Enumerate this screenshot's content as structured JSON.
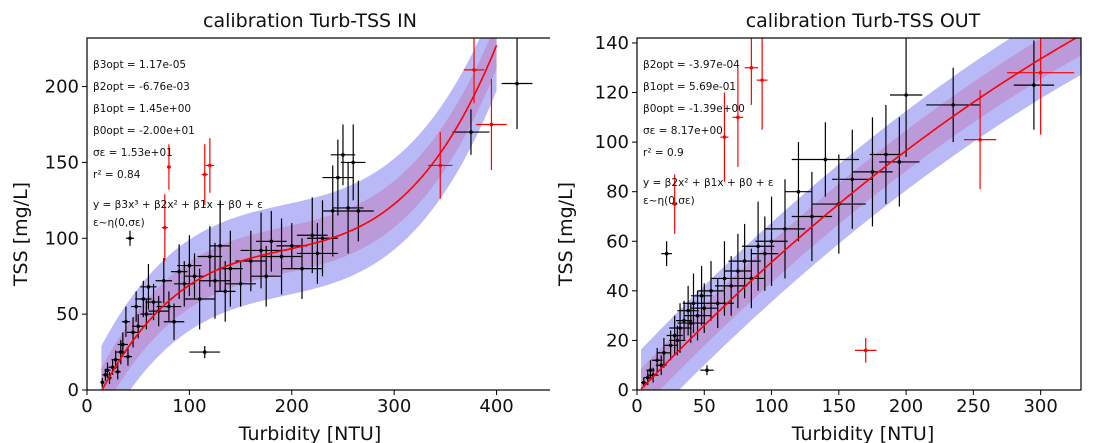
{
  "chart_data": [
    {
      "type": "scatter",
      "title": "calibration Turb-TSS IN",
      "xlabel": "Turbidity [NTU]",
      "ylabel": "TSS [mg/L]",
      "xlim": [
        0,
        460
      ],
      "ylim": [
        0,
        232
      ],
      "xticks": [
        0,
        100,
        200,
        300,
        400
      ],
      "yticks": [
        0,
        50,
        100,
        150,
        200
      ],
      "grid": false,
      "colors": {
        "points": "#000000",
        "outliers": "#ff0000",
        "fit": "#ff0000",
        "band_outer": "#8080f0",
        "band_inner": "#c080c0"
      },
      "annotations": [
        "β3opt = 1.17e-05",
        "β2opt = -6.76e-03",
        "β1opt = 1.45e+00",
        "β0opt = -2.00e+01",
        "σε = 1.53e+01",
        "r² = 0.84",
        "y = β3x³ + β2x² + β1x + β0 + ε",
        "ε~η(0,σε)"
      ],
      "fit": {
        "model": "cubic",
        "coefficients": [
          1.17e-05,
          -0.00676,
          1.45,
          -20.0
        ],
        "sigma": 15.3,
        "x_range": [
          14,
          400
        ]
      },
      "points": [
        {
          "x": 15,
          "y": 5,
          "xerr": 2,
          "yerr": 3
        },
        {
          "x": 18,
          "y": 10,
          "xerr": 3,
          "yerr": 4
        },
        {
          "x": 20,
          "y": 13,
          "xerr": 3,
          "yerr": 5
        },
        {
          "x": 22,
          "y": 8,
          "xerr": 2,
          "yerr": 4
        },
        {
          "x": 25,
          "y": 15,
          "xerr": 4,
          "yerr": 5
        },
        {
          "x": 28,
          "y": 20,
          "xerr": 4,
          "yerr": 6
        },
        {
          "x": 30,
          "y": 12,
          "xerr": 3,
          "yerr": 5
        },
        {
          "x": 33,
          "y": 25,
          "xerr": 5,
          "yerr": 8
        },
        {
          "x": 35,
          "y": 30,
          "xerr": 5,
          "yerr": 8
        },
        {
          "x": 38,
          "y": 45,
          "xerr": 4,
          "yerr": 10
        },
        {
          "x": 40,
          "y": 22,
          "xerr": 4,
          "yerr": 6
        },
        {
          "x": 42,
          "y": 100,
          "xerr": 4,
          "yerr": 5
        },
        {
          "x": 45,
          "y": 38,
          "xerr": 6,
          "yerr": 10
        },
        {
          "x": 48,
          "y": 55,
          "xerr": 5,
          "yerr": 10
        },
        {
          "x": 50,
          "y": 42,
          "xerr": 6,
          "yerr": 8
        },
        {
          "x": 55,
          "y": 60,
          "xerr": 8,
          "yerr": 12
        },
        {
          "x": 58,
          "y": 50,
          "xerr": 6,
          "yerr": 10
        },
        {
          "x": 60,
          "y": 68,
          "xerr": 8,
          "yerr": 15
        },
        {
          "x": 65,
          "y": 58,
          "xerr": 8,
          "yerr": 12
        },
        {
          "x": 70,
          "y": 52,
          "xerr": 10,
          "yerr": 10
        },
        {
          "x": 75,
          "y": 72,
          "xerr": 8,
          "yerr": 15
        },
        {
          "x": 80,
          "y": 55,
          "xerr": 12,
          "yerr": 10
        },
        {
          "x": 85,
          "y": 45,
          "xerr": 10,
          "yerr": 12
        },
        {
          "x": 90,
          "y": 78,
          "xerr": 8,
          "yerr": 18
        },
        {
          "x": 95,
          "y": 70,
          "xerr": 10,
          "yerr": 15
        },
        {
          "x": 100,
          "y": 82,
          "xerr": 12,
          "yerr": 20
        },
        {
          "x": 105,
          "y": 75,
          "xerr": 10,
          "yerr": 15
        },
        {
          "x": 110,
          "y": 60,
          "xerr": 15,
          "yerr": 20
        },
        {
          "x": 115,
          "y": 25,
          "xerr": 15,
          "yerr": 4
        },
        {
          "x": 120,
          "y": 88,
          "xerr": 12,
          "yerr": 20
        },
        {
          "x": 125,
          "y": 72,
          "xerr": 15,
          "yerr": 25
        },
        {
          "x": 130,
          "y": 95,
          "xerr": 10,
          "yerr": 30
        },
        {
          "x": 135,
          "y": 65,
          "xerr": 10,
          "yerr": 20
        },
        {
          "x": 140,
          "y": 80,
          "xerr": 12,
          "yerr": 25
        },
        {
          "x": 150,
          "y": 70,
          "xerr": 15,
          "yerr": 15
        },
        {
          "x": 160,
          "y": 85,
          "xerr": 15,
          "yerr": 20
        },
        {
          "x": 170,
          "y": 92,
          "xerr": 20,
          "yerr": 25
        },
        {
          "x": 175,
          "y": 75,
          "xerr": 15,
          "yerr": 20
        },
        {
          "x": 180,
          "y": 98,
          "xerr": 15,
          "yerr": 20
        },
        {
          "x": 190,
          "y": 88,
          "xerr": 20,
          "yerr": 25
        },
        {
          "x": 200,
          "y": 95,
          "xerr": 15,
          "yerr": 15
        },
        {
          "x": 210,
          "y": 80,
          "xerr": 20,
          "yerr": 20
        },
        {
          "x": 220,
          "y": 102,
          "xerr": 15,
          "yerr": 25
        },
        {
          "x": 225,
          "y": 90,
          "xerr": 20,
          "yerr": 20
        },
        {
          "x": 230,
          "y": 100,
          "xerr": 15,
          "yerr": 25
        },
        {
          "x": 240,
          "y": 118,
          "xerr": 10,
          "yerr": 30
        },
        {
          "x": 245,
          "y": 140,
          "xerr": 15,
          "yerr": 25
        },
        {
          "x": 250,
          "y": 155,
          "xerr": 12,
          "yerr": 20
        },
        {
          "x": 255,
          "y": 120,
          "xerr": 15,
          "yerr": 30
        },
        {
          "x": 260,
          "y": 150,
          "xerr": 12,
          "yerr": 25
        },
        {
          "x": 265,
          "y": 118,
          "xerr": 15,
          "yerr": 20
        },
        {
          "x": 375,
          "y": 170,
          "xerr": 18,
          "yerr": 15
        },
        {
          "x": 420,
          "y": 202,
          "xerr": 15,
          "yerr": 30
        }
      ],
      "outliers": [
        {
          "x": 76,
          "y": 107,
          "xerr": 3,
          "yerr": 22
        },
        {
          "x": 80,
          "y": 147,
          "xerr": 2,
          "yerr": 15
        },
        {
          "x": 115,
          "y": 142,
          "xerr": 3,
          "yerr": 20
        },
        {
          "x": 120,
          "y": 148,
          "xerr": 4,
          "yerr": 18
        },
        {
          "x": 345,
          "y": 148,
          "xerr": 12,
          "yerr": 22
        },
        {
          "x": 378,
          "y": 211,
          "xerr": 10,
          "yerr": 22
        },
        {
          "x": 395,
          "y": 175,
          "xerr": 15,
          "yerr": 30
        }
      ]
    },
    {
      "type": "scatter",
      "title": "calibration Turb-TSS OUT",
      "xlabel": "Turbidity [NTU]",
      "ylabel": "TSS [mg/L]",
      "xlim": [
        0,
        330
      ],
      "ylim": [
        0,
        142
      ],
      "xticks": [
        0,
        50,
        100,
        150,
        200,
        250,
        300
      ],
      "yticks": [
        0,
        20,
        40,
        60,
        80,
        100,
        120,
        140
      ],
      "grid": false,
      "colors": {
        "points": "#000000",
        "outliers": "#ff0000",
        "fit": "#ff0000",
        "band_outer": "#8080f0",
        "band_inner": "#c080c0"
      },
      "annotations": [
        "β2opt = -3.97e-04",
        "β1opt = 5.69e-01",
        "β0opt = -1.39e+00",
        "σε = 8.17e+00",
        "r² = 0.9",
        "y = β2x² + β1x + β0 + ε",
        "ε~η(0,σε)"
      ],
      "fit": {
        "model": "quadratic",
        "coefficients": [
          -0.000397,
          0.569,
          -1.39
        ],
        "sigma": 8.17,
        "x_range": [
          3,
          330
        ]
      },
      "points": [
        {
          "x": 5,
          "y": 3,
          "xerr": 2,
          "yerr": 2
        },
        {
          "x": 8,
          "y": 5,
          "xerr": 3,
          "yerr": 3
        },
        {
          "x": 10,
          "y": 8,
          "xerr": 3,
          "yerr": 4
        },
        {
          "x": 12,
          "y": 6,
          "xerr": 4,
          "yerr": 3
        },
        {
          "x": 15,
          "y": 12,
          "xerr": 4,
          "yerr": 5
        },
        {
          "x": 18,
          "y": 10,
          "xerr": 4,
          "yerr": 4
        },
        {
          "x": 20,
          "y": 15,
          "xerr": 5,
          "yerr": 6
        },
        {
          "x": 22,
          "y": 55,
          "xerr": 4,
          "yerr": 5
        },
        {
          "x": 25,
          "y": 18,
          "xerr": 5,
          "yerr": 6
        },
        {
          "x": 28,
          "y": 22,
          "xerr": 6,
          "yerr": 8
        },
        {
          "x": 30,
          "y": 20,
          "xerr": 6,
          "yerr": 6
        },
        {
          "x": 32,
          "y": 25,
          "xerr": 8,
          "yerr": 10
        },
        {
          "x": 35,
          "y": 28,
          "xerr": 6,
          "yerr": 8
        },
        {
          "x": 38,
          "y": 32,
          "xerr": 8,
          "yerr": 10
        },
        {
          "x": 40,
          "y": 27,
          "xerr": 10,
          "yerr": 8
        },
        {
          "x": 42,
          "y": 35,
          "xerr": 8,
          "yerr": 12
        },
        {
          "x": 45,
          "y": 30,
          "xerr": 10,
          "yerr": 10
        },
        {
          "x": 48,
          "y": 38,
          "xerr": 8,
          "yerr": 12
        },
        {
          "x": 50,
          "y": 33,
          "xerr": 10,
          "yerr": 10
        },
        {
          "x": 52,
          "y": 8,
          "xerr": 5,
          "yerr": 2
        },
        {
          "x": 55,
          "y": 40,
          "xerr": 10,
          "yerr": 12
        },
        {
          "x": 60,
          "y": 35,
          "xerr": 12,
          "yerr": 10
        },
        {
          "x": 65,
          "y": 45,
          "xerr": 10,
          "yerr": 15
        },
        {
          "x": 70,
          "y": 42,
          "xerr": 12,
          "yerr": 12
        },
        {
          "x": 75,
          "y": 48,
          "xerr": 10,
          "yerr": 15
        },
        {
          "x": 80,
          "y": 52,
          "xerr": 12,
          "yerr": 15
        },
        {
          "x": 85,
          "y": 45,
          "xerr": 10,
          "yerr": 12
        },
        {
          "x": 90,
          "y": 58,
          "xerr": 12,
          "yerr": 18
        },
        {
          "x": 95,
          "y": 55,
          "xerr": 10,
          "yerr": 15
        },
        {
          "x": 100,
          "y": 60,
          "xerr": 12,
          "yerr": 18
        },
        {
          "x": 110,
          "y": 65,
          "xerr": 15,
          "yerr": 20
        },
        {
          "x": 120,
          "y": 80,
          "xerr": 10,
          "yerr": 20
        },
        {
          "x": 130,
          "y": 70,
          "xerr": 15,
          "yerr": 18
        },
        {
          "x": 140,
          "y": 93,
          "xerr": 25,
          "yerr": 15
        },
        {
          "x": 150,
          "y": 75,
          "xerr": 20,
          "yerr": 20
        },
        {
          "x": 160,
          "y": 85,
          "xerr": 15,
          "yerr": 20
        },
        {
          "x": 175,
          "y": 88,
          "xerr": 15,
          "yerr": 22
        },
        {
          "x": 185,
          "y": 95,
          "xerr": 12,
          "yerr": 20
        },
        {
          "x": 195,
          "y": 92,
          "xerr": 15,
          "yerr": 18
        },
        {
          "x": 200,
          "y": 119,
          "xerr": 12,
          "yerr": 25
        },
        {
          "x": 235,
          "y": 115,
          "xerr": 20,
          "yerr": 15
        },
        {
          "x": 295,
          "y": 123,
          "xerr": 15,
          "yerr": 18
        }
      ],
      "outliers": [
        {
          "x": 28,
          "y": 75,
          "xerr": 2,
          "yerr": 12
        },
        {
          "x": 65,
          "y": 102,
          "xerr": 3,
          "yerr": 18
        },
        {
          "x": 75,
          "y": 110,
          "xerr": 4,
          "yerr": 20
        },
        {
          "x": 85,
          "y": 130,
          "xerr": 5,
          "yerr": 15
        },
        {
          "x": 93,
          "y": 125,
          "xerr": 4,
          "yerr": 20
        },
        {
          "x": 170,
          "y": 16,
          "xerr": 8,
          "yerr": 5
        },
        {
          "x": 255,
          "y": 101,
          "xerr": 12,
          "yerr": 20
        },
        {
          "x": 300,
          "y": 128,
          "xerr": 25,
          "yerr": 25
        }
      ]
    }
  ]
}
